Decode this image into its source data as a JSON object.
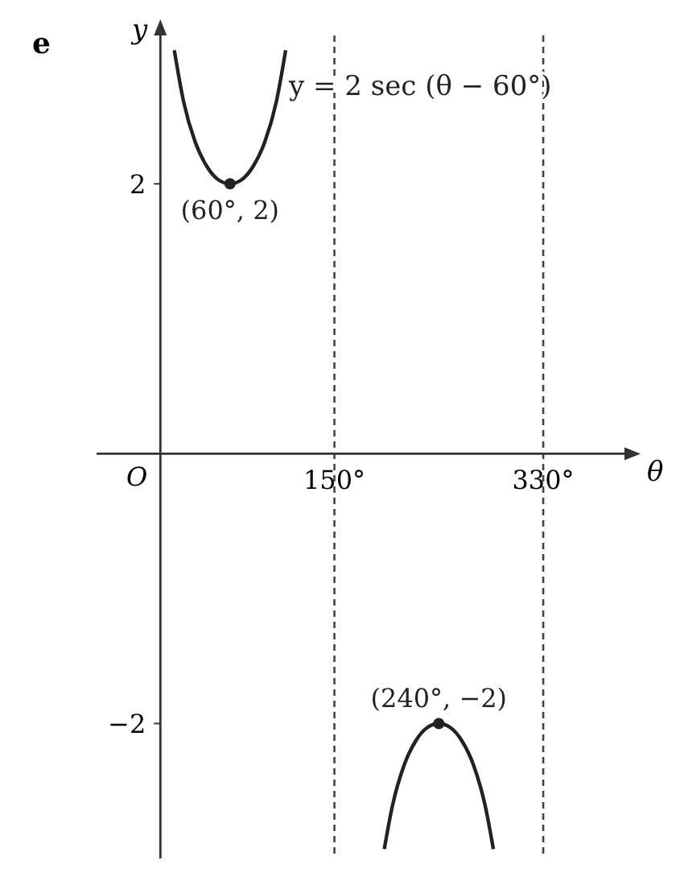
{
  "chart_data": {
    "type": "line",
    "title": "e",
    "xlabel": "θ",
    "ylabel": "y",
    "xlim": [
      -55,
      400
    ],
    "ylim": [
      -3,
      3.1
    ],
    "xticks": [
      {
        "value": 150,
        "label": "150°"
      },
      {
        "value": 330,
        "label": "330°"
      }
    ],
    "yticks": [
      2,
      {
        "value": -2,
        "label": "−2"
      }
    ],
    "line_style": "solid",
    "series": [
      {
        "color": "#222222",
        "x": [
          12,
          20,
          30,
          40,
          50,
          60,
          70,
          80,
          90,
          100,
          108
        ],
        "values": [
          2.99,
          2.61,
          2.31,
          2.13,
          2.03,
          2,
          2.03,
          2.13,
          2.31,
          2.61,
          2.99
        ]
      },
      {
        "color": "#222222",
        "x": [
          193,
          200,
          210,
          220,
          230,
          240,
          250,
          260,
          270,
          280,
          287
        ],
        "values": [
          -2.93,
          -2.61,
          -2.31,
          -2.13,
          -2.03,
          -2,
          -2.03,
          -2.13,
          -2.31,
          -2.61,
          -2.93
        ]
      },
      {
        "type": "scatter",
        "color": "#222222",
        "marker": "circle",
        "x": [
          60,
          240
        ],
        "values": [
          2,
          -2
        ]
      }
    ],
    "ref_lines": [
      {
        "axis": "x",
        "value": 150,
        "line_style": "dashed",
        "color": "#444444"
      },
      {
        "axis": "x",
        "value": 330,
        "line_style": "dashed",
        "color": "#444444"
      }
    ],
    "annotations": [
      "y = 2 sec (θ − 60°)",
      "O",
      {
        "text": "(60°, 2)",
        "x": 60,
        "y": 2
      },
      {
        "text": "(240°, −2)",
        "x": 240,
        "y": -2
      }
    ]
  }
}
